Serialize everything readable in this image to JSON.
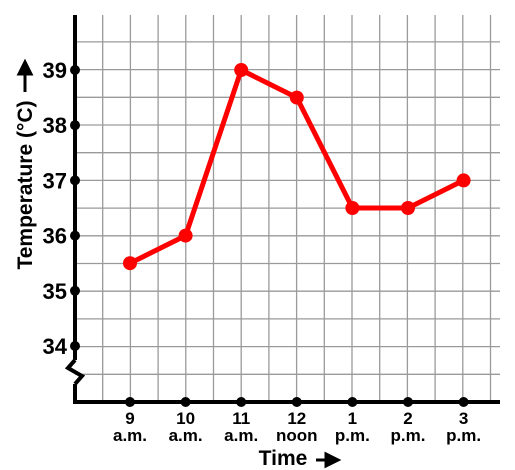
{
  "chart_data": {
    "type": "line",
    "xlabel": "Time",
    "ylabel": "Temperature (°C)",
    "categories": [
      [
        "9",
        "a.m."
      ],
      [
        "10",
        "a.m."
      ],
      [
        "11",
        "a.m."
      ],
      [
        "12",
        "noon"
      ],
      [
        "1",
        "p.m."
      ],
      [
        "2",
        "p.m."
      ],
      [
        "3",
        "p.m."
      ]
    ],
    "y_ticks": [
      34,
      35,
      36,
      37,
      38,
      39
    ],
    "y_tick_labels": [
      "34",
      "35",
      "36",
      "37",
      "38",
      "39"
    ],
    "ylim": [
      34,
      40
    ],
    "y_axis_break": true,
    "grid": true,
    "series": [
      {
        "values": [
          35.5,
          36,
          39,
          38.5,
          36.5,
          36.5,
          37
        ],
        "color": "#ff0000"
      }
    ],
    "colors": {
      "series": "#ff0000",
      "grid": "#9a9a9a",
      "axis": "#000000"
    }
  }
}
